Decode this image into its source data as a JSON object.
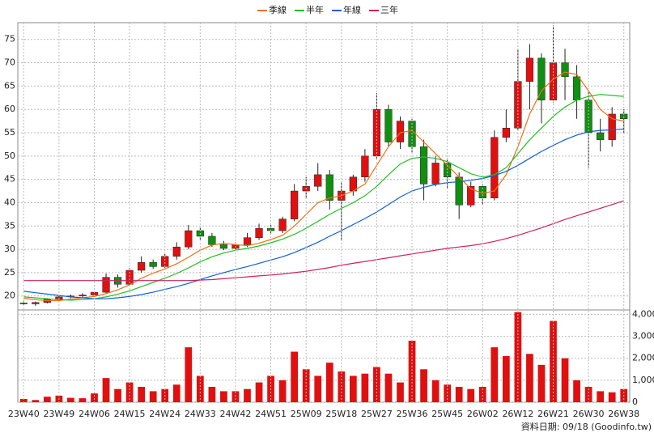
{
  "chart_data": [
    {
      "type": "candlestick",
      "open": [
        18.5,
        18.3,
        18.6,
        19.3,
        19.8,
        20,
        20.2,
        20.8,
        24,
        22.5,
        25.5,
        27.2,
        26.3,
        28.5,
        30.5,
        34,
        32.8,
        31,
        30.2,
        31,
        32.5,
        34.5,
        34,
        36.5,
        42.5,
        43.5,
        46,
        40.5,
        42.5,
        45.5,
        50,
        60,
        53,
        57.5,
        52,
        44,
        48.5,
        45.5,
        39.5,
        43.5,
        41,
        54,
        56,
        66,
        71,
        62,
        70,
        67,
        62,
        55,
        53.5,
        59
      ],
      "high": [
        19,
        18.8,
        19.5,
        20.2,
        20.3,
        20.6,
        21,
        24.8,
        24.6,
        26,
        28.5,
        27.8,
        29,
        31.5,
        35.2,
        34.8,
        33.5,
        31.8,
        31.5,
        33.5,
        35.5,
        35.2,
        37,
        44,
        45.5,
        48.5,
        47,
        44.5,
        46,
        51.5,
        63.5,
        61,
        58.5,
        58,
        53.5,
        50,
        49.5,
        46.5,
        44.5,
        44,
        55.5,
        60,
        73,
        74,
        72,
        78,
        73,
        69.5,
        64,
        58,
        60.5,
        60
      ],
      "low": [
        18,
        17.9,
        18.4,
        19,
        19.5,
        19.7,
        19.8,
        20.5,
        21.8,
        22.3,
        25,
        25.8,
        26,
        27.8,
        30,
        32,
        30.5,
        29.8,
        29.8,
        30.5,
        32,
        33.2,
        33.5,
        36,
        41,
        42.5,
        38.5,
        32,
        41.5,
        44.5,
        49.5,
        52,
        51.5,
        50.5,
        40.5,
        43.5,
        43,
        36.5,
        39,
        39.5,
        40.5,
        53,
        55.5,
        60,
        57,
        61.5,
        62,
        58,
        47.5,
        51,
        52,
        55
      ],
      "close": [
        18.3,
        18.6,
        19.3,
        19.8,
        20,
        20.2,
        20.8,
        24,
        22.5,
        25.5,
        27.2,
        26.3,
        28.5,
        30.5,
        34,
        32.8,
        31,
        30.2,
        31,
        32.5,
        34.5,
        34,
        36.5,
        42.5,
        43.5,
        46,
        40.5,
        42.5,
        45.5,
        50,
        60,
        53,
        57.5,
        52,
        44,
        48.5,
        45.5,
        39.5,
        43.5,
        41,
        54,
        56,
        66,
        71,
        62,
        70,
        67,
        62,
        55,
        53.5,
        59,
        58
      ],
      "up_color": "#e01010",
      "down_color": "#109010",
      "series": [
        {
          "name": "季線",
          "color": "#f07010",
          "values": [
            19.5,
            19.2,
            19,
            19,
            19.3,
            19.6,
            19.9,
            20.5,
            21.3,
            22.4,
            23.8,
            24.9,
            25.8,
            26.9,
            28.3,
            29.8,
            30.9,
            31.3,
            31,
            30.8,
            31.3,
            32.1,
            33,
            35,
            37.5,
            40,
            41,
            41.5,
            42.5,
            44,
            48,
            52,
            55,
            55.5,
            53,
            50.5,
            48,
            45.5,
            43,
            42,
            42.5,
            46,
            52,
            59,
            64,
            66.5,
            68,
            67.5,
            64,
            60,
            58,
            57.5
          ]
        },
        {
          "name": "半年",
          "color": "#20c020",
          "values": [
            19.8,
            19.6,
            19.4,
            19.2,
            19.1,
            19.2,
            19.4,
            19.8,
            20.4,
            21.1,
            22,
            22.9,
            23.8,
            24.8,
            26,
            27.3,
            28.4,
            29.2,
            29.8,
            30.2,
            30.7,
            31.4,
            32.2,
            33.2,
            34.5,
            36,
            37.5,
            38.8,
            40,
            41.5,
            43.5,
            46,
            48.3,
            49.5,
            49.8,
            49.5,
            48.8,
            47.5,
            46.2,
            45.5,
            46,
            47.5,
            50.5,
            53.5,
            56,
            58.5,
            60.5,
            62,
            62.8,
            63.2,
            63,
            62.8
          ]
        },
        {
          "name": "年線",
          "color": "#1060d0",
          "values": [
            21,
            20.7,
            20.4,
            20.1,
            19.8,
            19.6,
            19.4,
            19.4,
            19.6,
            19.9,
            20.3,
            20.8,
            21.4,
            22,
            22.7,
            23.5,
            24.3,
            25,
            25.7,
            26.3,
            27,
            27.7,
            28.4,
            29.3,
            30.4,
            31.5,
            32.8,
            34,
            35.3,
            36.6,
            38,
            39.6,
            41.2,
            42.5,
            43.3,
            43.9,
            44.3,
            44.5,
            44.8,
            45.2,
            45.8,
            46.7,
            48,
            49.5,
            51,
            52.3,
            53.5,
            54.5,
            55.2,
            55.5,
            55.6,
            55.8
          ]
        },
        {
          "name": "三年",
          "color": "#d02060",
          "values": [
            23.3,
            23.3,
            23.3,
            23.3,
            23.3,
            23.3,
            23.3,
            23.3,
            23.3,
            23.3,
            23.3,
            23.3,
            23.3,
            23.3,
            23.3,
            23.4,
            23.5,
            23.7,
            23.9,
            24.1,
            24.3,
            24.5,
            24.7,
            25,
            25.3,
            25.7,
            26.1,
            26.6,
            27,
            27.4,
            27.8,
            28.2,
            28.6,
            29,
            29.4,
            29.8,
            30.2,
            30.5,
            30.8,
            31.2,
            31.7,
            32.3,
            33,
            33.8,
            34.6,
            35.5,
            36.4,
            37.2,
            38,
            38.8,
            39.6,
            40.4
          ]
        }
      ],
      "ylim": [
        17,
        78.6
      ],
      "yticks": [
        20,
        25,
        30,
        35,
        40,
        45,
        50,
        55,
        60,
        65,
        70,
        75
      ],
      "grid": true
    },
    {
      "type": "bar",
      "categories": [
        "23W40",
        null,
        null,
        "23W49",
        null,
        null,
        "24W06",
        null,
        null,
        "24W15",
        null,
        null,
        "24W24",
        null,
        null,
        "24W33",
        null,
        null,
        "24W42",
        null,
        null,
        "24W51",
        null,
        null,
        "25W09",
        null,
        null,
        "25W18",
        null,
        null,
        "25W27",
        null,
        null,
        "25W36",
        null,
        null,
        "25W45",
        null,
        null,
        "26W02",
        null,
        null,
        "26W12",
        null,
        null,
        "26W21",
        null,
        null,
        "26W30",
        null,
        null,
        "26W38"
      ],
      "values": [
        150,
        100,
        250,
        300,
        200,
        180,
        400,
        1100,
        600,
        900,
        700,
        500,
        600,
        800,
        2500,
        1200,
        700,
        500,
        500,
        600,
        900,
        1200,
        1000,
        2300,
        1500,
        1200,
        1800,
        1400,
        1200,
        1300,
        1600,
        1300,
        900,
        2800,
        1500,
        1000,
        800,
        700,
        600,
        700,
        2500,
        2100,
        4100,
        2200,
        1700,
        3700,
        2000,
        1000,
        700,
        500,
        450,
        600
      ],
      "color": "#e01010",
      "ylim": [
        0,
        4200
      ],
      "yticks": [
        0,
        {
          "value": 1000,
          "label": "1,000"
        },
        {
          "value": 2000,
          "label": "2,000"
        },
        {
          "value": 3000,
          "label": "3,000"
        },
        {
          "value": 4000,
          "label": "4,000"
        }
      ],
      "grid": true,
      "note": "資料日期: 09/18  (Goodinfo.tw)"
    }
  ]
}
